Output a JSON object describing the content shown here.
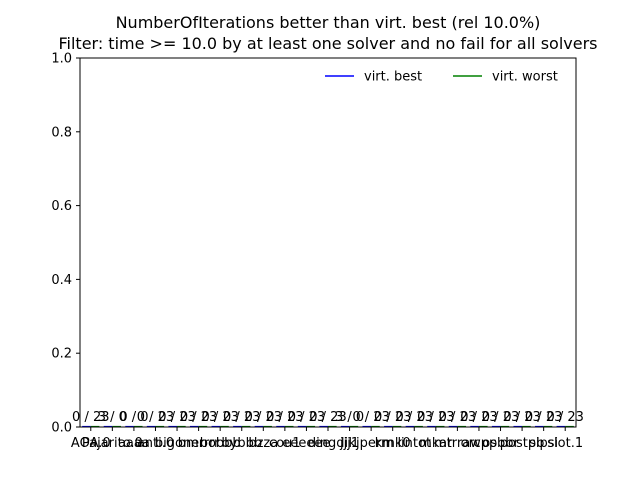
{
  "chart_data": {
    "type": "bar",
    "title_line1": "NumberOfIterations better than virt. best (rel 10.0%)",
    "title_line2": "Filter: time >= 10.0 by at least one solver and no fail for all solvers",
    "ylim": [
      0,
      1.0
    ],
    "yticks": [
      "0.0",
      "0.2",
      "0.4",
      "0.6",
      "0.8",
      "1.0"
    ],
    "ytick_values": [
      0,
      0.2,
      0.4,
      0.6,
      0.8,
      1.0
    ],
    "grid": false,
    "legend_position": "top-right",
    "categories": [
      "AOA.0",
      "Pajarito.0",
      "aaaa",
      "anti.0",
      "bigone",
      "bmrrrr",
      "bobbb",
      "bybbb",
      "bzza",
      "cou1",
      "eeeeee",
      "dingdi",
      "jjj1",
      "kjperm",
      "kmk0",
      "lintot",
      "mkar",
      "mtrraw",
      "orcpp",
      "osbbr",
      "postpb",
      "sipsi",
      "slot.1"
    ],
    "series": [
      {
        "name": "virt. best",
        "color": "#0000ff",
        "values": [
          0,
          0,
          0,
          0,
          0,
          0,
          0,
          0,
          0,
          0,
          0,
          0,
          0,
          0,
          0,
          0,
          0,
          0,
          0,
          0,
          0,
          0,
          0
        ]
      },
      {
        "name": "virt. worst",
        "color": "#008000",
        "values": [
          0,
          0,
          0,
          0,
          0,
          0,
          0,
          0,
          0,
          0,
          0,
          0,
          0,
          0,
          0,
          0,
          0,
          0,
          0,
          0,
          0,
          0,
          0
        ]
      }
    ],
    "bar_labels": [
      "0 / 23",
      "3 / 0",
      "0 / 0",
      "0 / 23",
      "0 / 23",
      "0 / 23",
      "0 / 23",
      "0 / 23",
      "0 / 23",
      "0 / 23",
      "0 / 23",
      "0 / 23",
      "3 / 0",
      "0 / 23",
      "0 / 23",
      "0 / 23",
      "0 / 23",
      "0 / 23",
      "0 / 23",
      "0 / 23",
      "0 / 23",
      "0 / 23",
      "0 / 23"
    ]
  }
}
